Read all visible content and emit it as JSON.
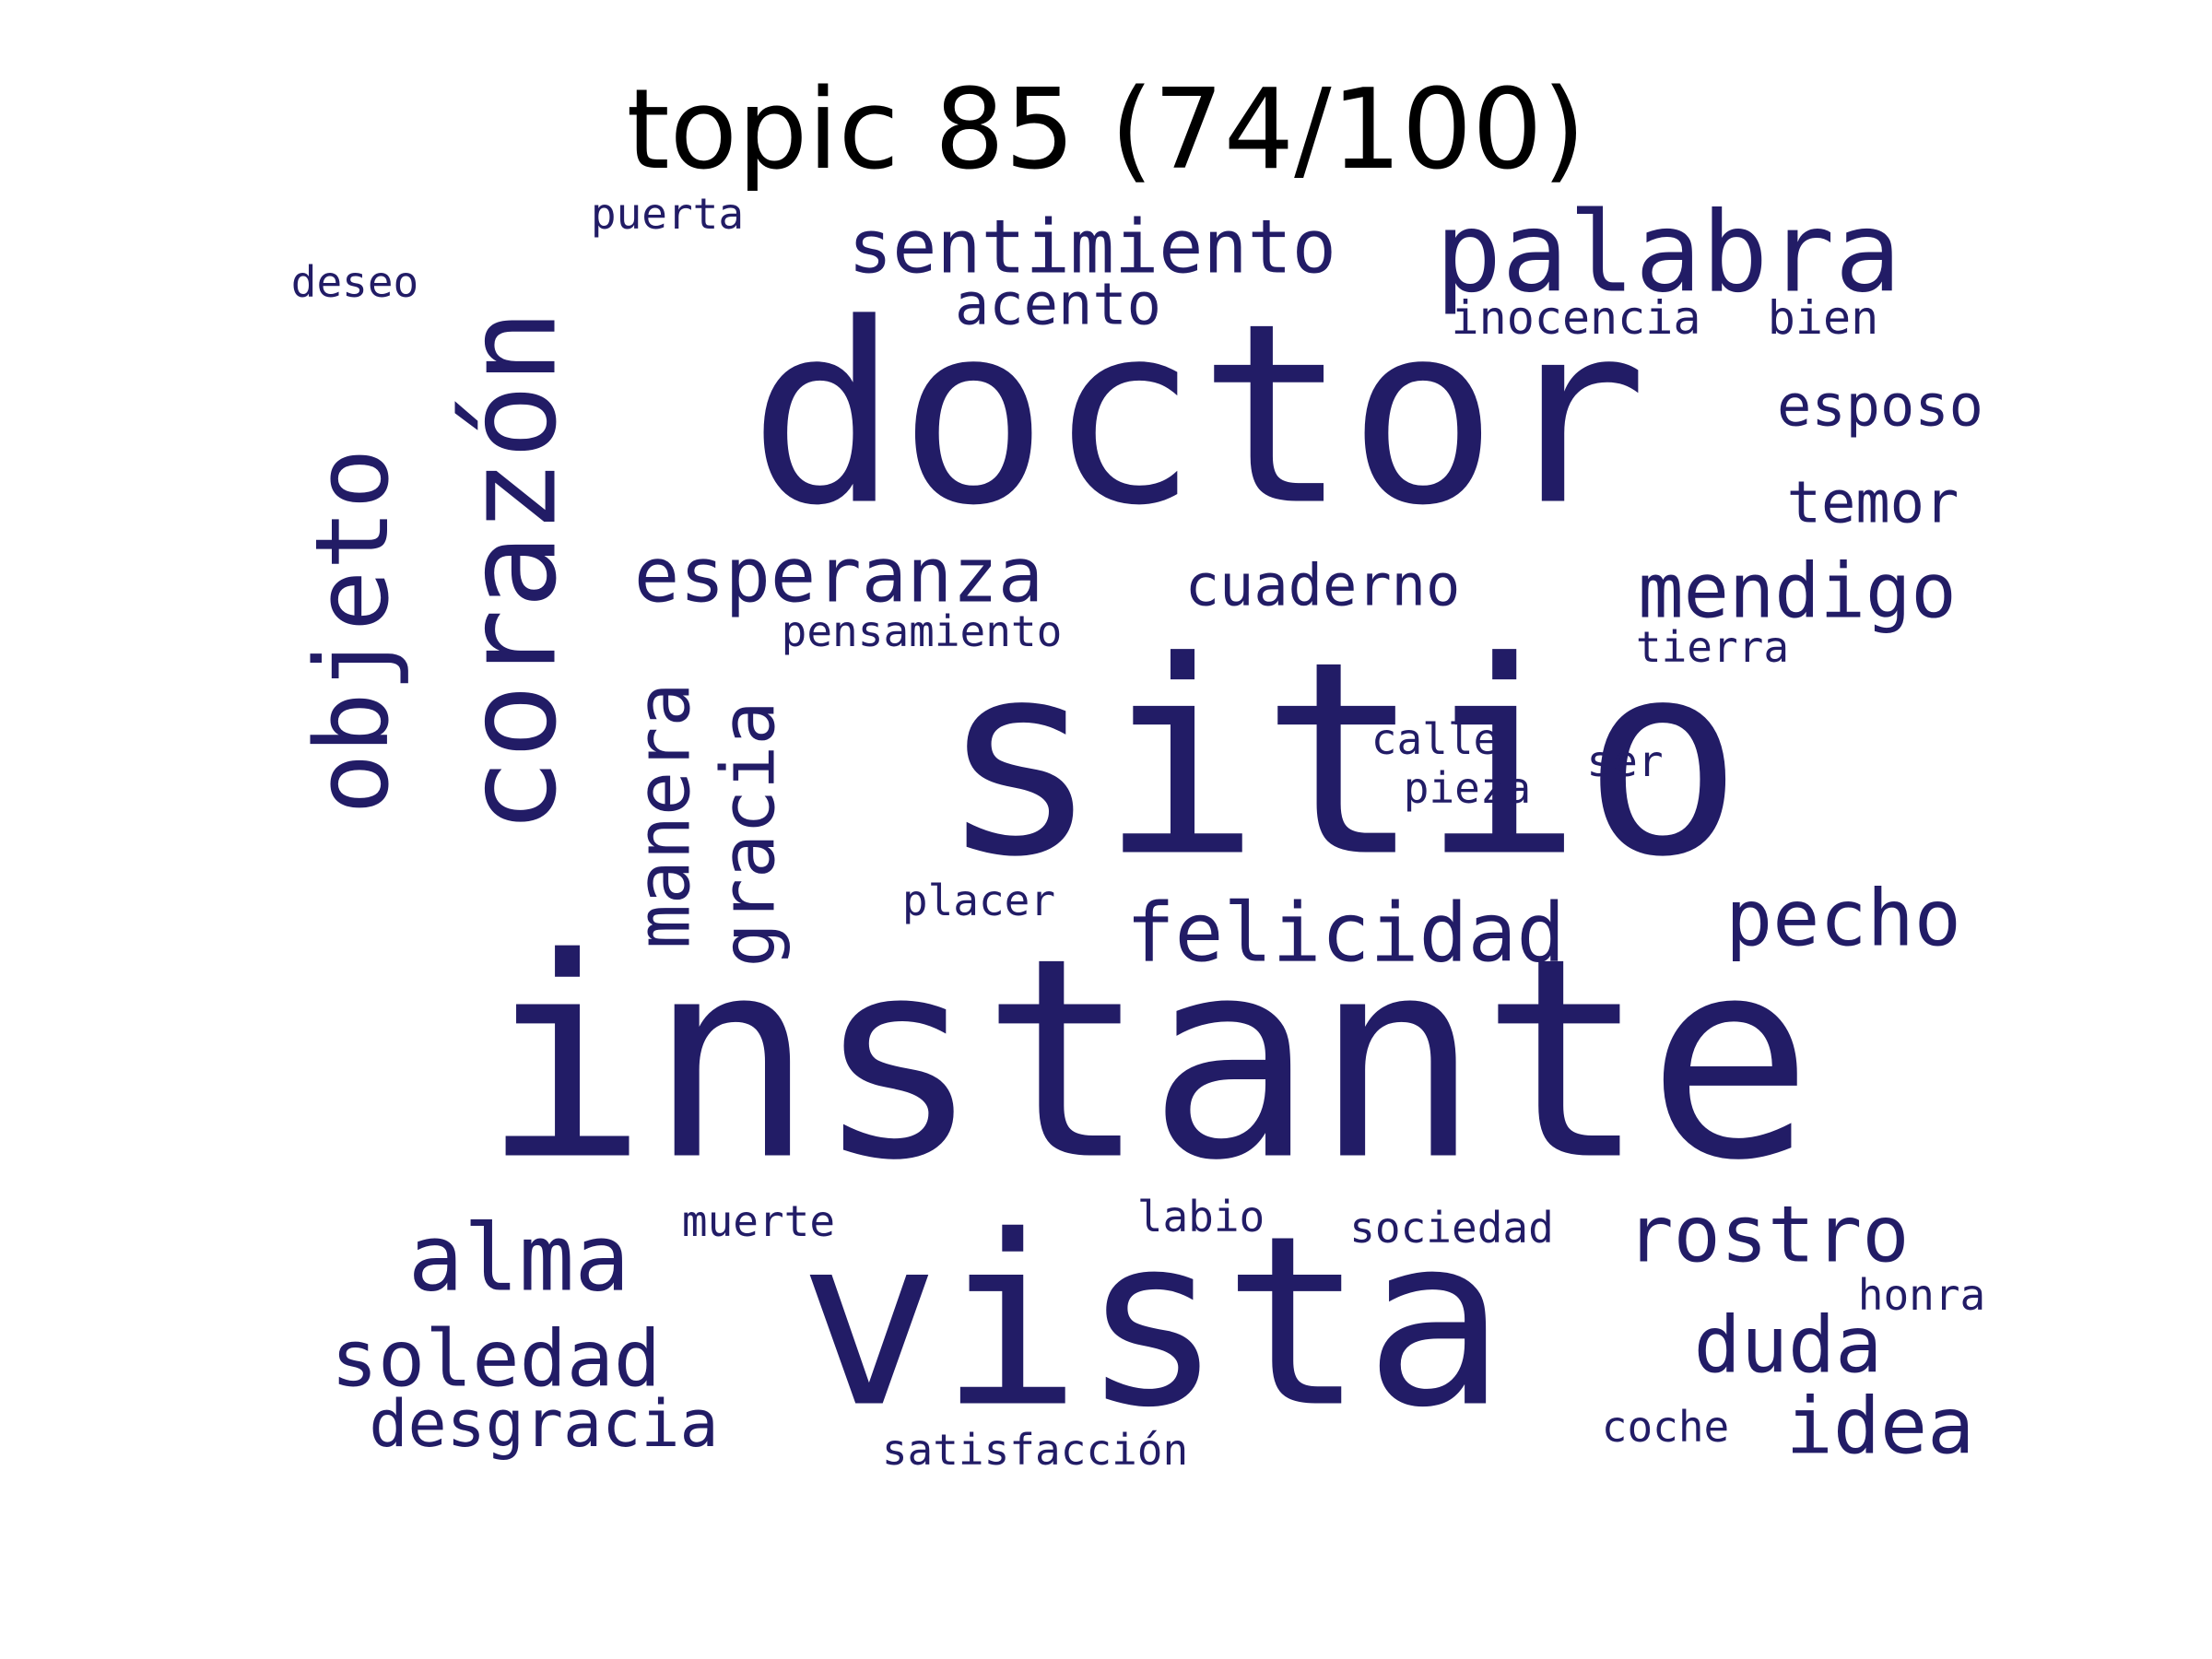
{
  "title": "topic 85 (74/100)",
  "colors": {
    "background": "#ffffff",
    "title": "#000000",
    "words": "#221c66"
  },
  "words": [
    {
      "text": "instante",
      "weight": 1.0
    },
    {
      "text": "sitio",
      "weight": 0.92
    },
    {
      "text": "doctor",
      "weight": 0.9
    },
    {
      "text": "vista",
      "weight": 0.82
    },
    {
      "text": "corazón",
      "weight": 0.5
    },
    {
      "text": "objeto",
      "weight": 0.4
    },
    {
      "text": "palabra",
      "weight": 0.38
    },
    {
      "text": "alma",
      "weight": 0.32
    },
    {
      "text": "manera",
      "weight": 0.28
    },
    {
      "text": "gracia",
      "weight": 0.27
    },
    {
      "text": "esperanza",
      "weight": 0.27
    },
    {
      "text": "sentimiento",
      "weight": 0.26
    },
    {
      "text": "mendigo",
      "weight": 0.26
    },
    {
      "text": "felicidad",
      "weight": 0.26
    },
    {
      "text": "pecho",
      "weight": 0.26
    },
    {
      "text": "rostro",
      "weight": 0.26
    },
    {
      "text": "soledad",
      "weight": 0.26
    },
    {
      "text": "idea",
      "weight": 0.26
    },
    {
      "text": "duda",
      "weight": 0.26
    },
    {
      "text": "desgracia",
      "weight": 0.22
    },
    {
      "text": "esposo",
      "weight": 0.2
    },
    {
      "text": "cuaderno",
      "weight": 0.2
    },
    {
      "text": "temor",
      "weight": 0.2
    },
    {
      "text": "acento",
      "weight": 0.2
    },
    {
      "text": "inocencia",
      "weight": 0.15
    },
    {
      "text": "bien",
      "weight": 0.15
    },
    {
      "text": "puerta",
      "weight": 0.14
    },
    {
      "text": "deseo",
      "weight": 0.14
    },
    {
      "text": "pensamiento",
      "weight": 0.14
    },
    {
      "text": "tierra",
      "weight": 0.14
    },
    {
      "text": "calle",
      "weight": 0.14
    },
    {
      "text": "pieza",
      "weight": 0.14
    },
    {
      "text": "ser",
      "weight": 0.14
    },
    {
      "text": "placer",
      "weight": 0.14
    },
    {
      "text": "muerte",
      "weight": 0.14
    },
    {
      "text": "labio",
      "weight": 0.14
    },
    {
      "text": "sociedad",
      "weight": 0.14
    },
    {
      "text": "honra",
      "weight": 0.14
    },
    {
      "text": "coche",
      "weight": 0.14
    },
    {
      "text": "satisfacción",
      "weight": 0.14
    }
  ]
}
